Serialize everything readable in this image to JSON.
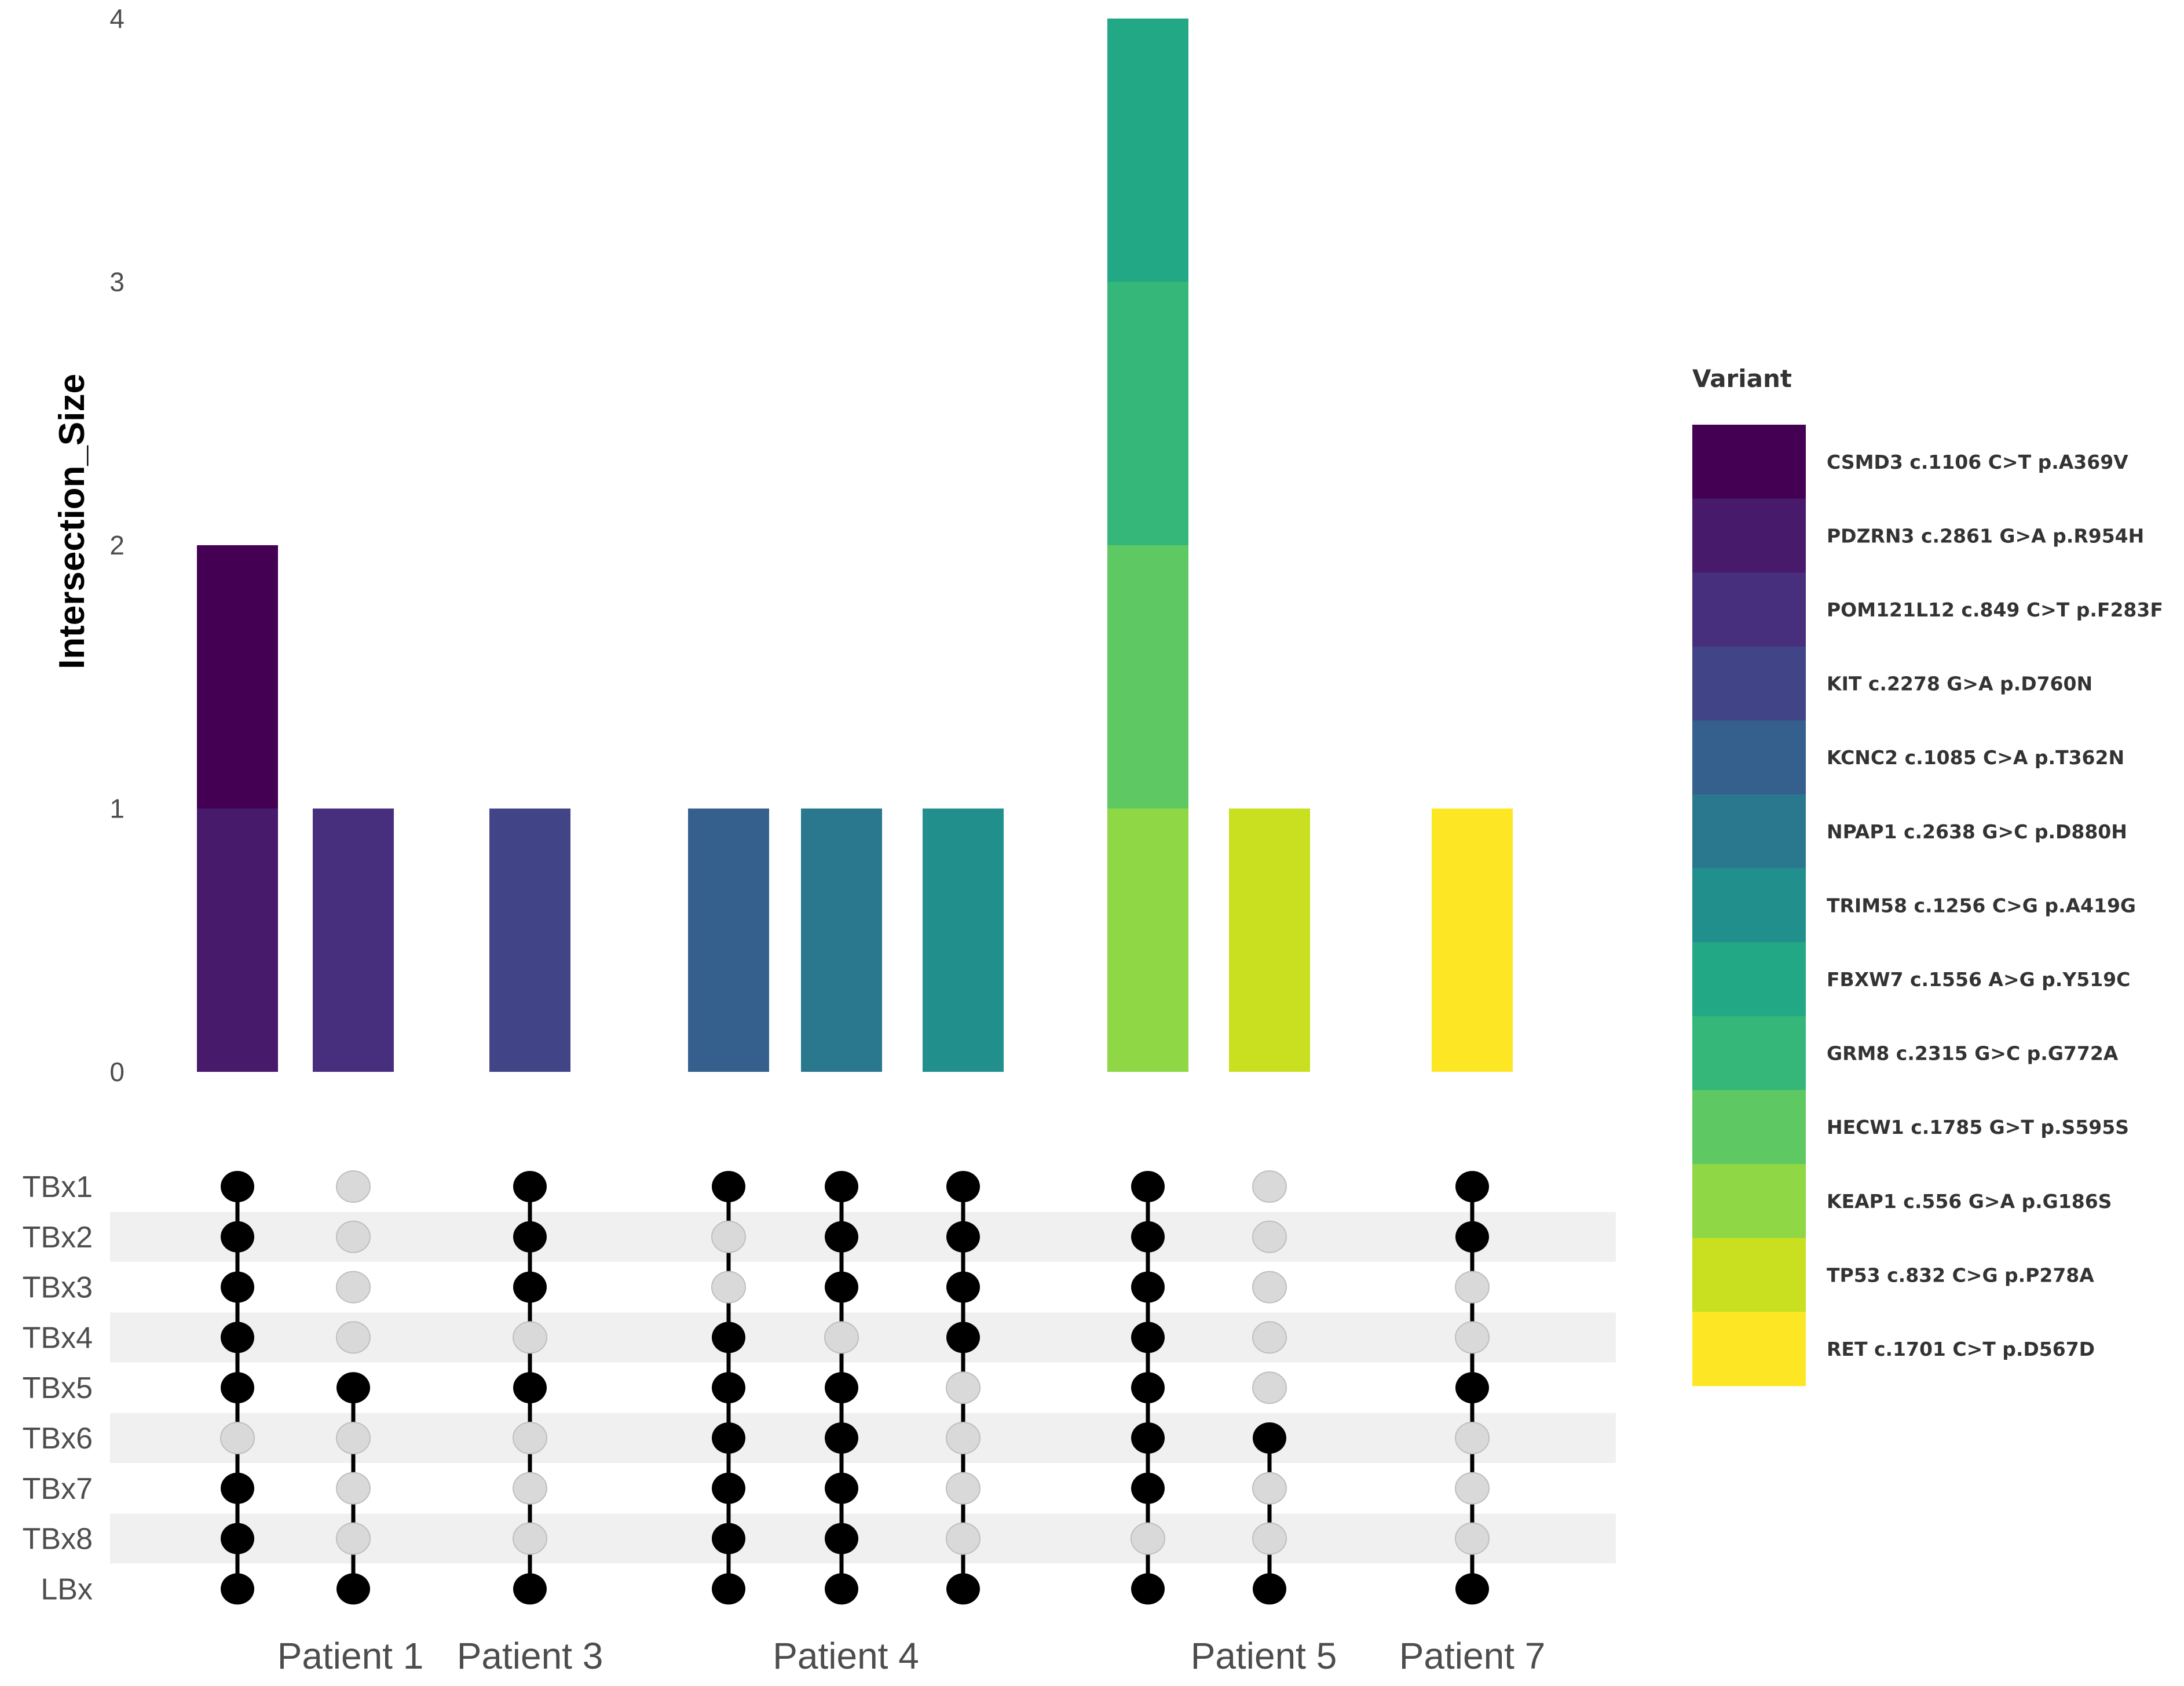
{
  "chart_data": {
    "type": "upset",
    "ylabel": "Intersection_Size",
    "ylim": [
      0,
      4
    ],
    "yticks": [
      0,
      1,
      2,
      3,
      4
    ],
    "sets": [
      "TBx1",
      "TBx2",
      "TBx3",
      "TBx4",
      "TBx5",
      "TBx6",
      "TBx7",
      "TBx8",
      "LBx"
    ],
    "legend": {
      "title": "Variant",
      "entries": [
        {
          "label": "CSMD3 c.1106 C>T p.A369V",
          "color": "#440154"
        },
        {
          "label": "PDZRN3 c.2861 G>A p.R954H",
          "color": "#481A6C"
        },
        {
          "label": "POM121L12 c.849 C>T p.F283F",
          "color": "#472F7D"
        },
        {
          "label": "KIT c.2278 G>A p.D760N",
          "color": "#414487"
        },
        {
          "label": "KCNC2 c.1085 C>A p.T362N",
          "color": "#35608D"
        },
        {
          "label": "NPAP1 c.2638 G>C p.D880H",
          "color": "#2A788E"
        },
        {
          "label": "TRIM58 c.1256 C>G p.A419G",
          "color": "#21908C"
        },
        {
          "label": "FBXW7 c.1556 A>G p.Y519C",
          "color": "#22A884"
        },
        {
          "label": "GRM8 c.2315 G>C p.G772A",
          "color": "#35B779"
        },
        {
          "label": "HECW1 c.1785 G>T p.S595S",
          "color": "#5EC962"
        },
        {
          "label": "KEAP1 c.556 G>A p.G186S",
          "color": "#8FD744"
        },
        {
          "label": "TP53 c.832 C>G p.P278A",
          "color": "#C8E020"
        },
        {
          "label": "RET c.1701 C>T p.D567D",
          "color": "#FDE725"
        }
      ]
    },
    "patients": [
      {
        "label": "Patient 1",
        "intersections": [
          0,
          1
        ]
      },
      {
        "label": "Patient 3",
        "intersections": [
          2
        ]
      },
      {
        "label": "Patient 4",
        "intersections": [
          3,
          4,
          5
        ]
      },
      {
        "label": "Patient 5",
        "intersections": [
          6,
          7
        ]
      },
      {
        "label": "Patient 7",
        "intersections": [
          8
        ]
      }
    ],
    "intersections": [
      {
        "patient": "Patient 1",
        "members": [
          "TBx1",
          "TBx2",
          "TBx3",
          "TBx4",
          "TBx5",
          "TBx7",
          "TBx8",
          "LBx"
        ],
        "size": 2,
        "stack": [
          {
            "variant": "PDZRN3 c.2861 G>A p.R954H",
            "value": 1
          },
          {
            "variant": "CSMD3 c.1106 C>T p.A369V",
            "value": 1
          }
        ]
      },
      {
        "patient": "Patient 1",
        "members": [
          "TBx5",
          "LBx"
        ],
        "size": 1,
        "stack": [
          {
            "variant": "POM121L12 c.849 C>T p.F283F",
            "value": 1
          }
        ]
      },
      {
        "patient": "Patient 3",
        "members": [
          "TBx1",
          "TBx2",
          "TBx3",
          "TBx5",
          "LBx"
        ],
        "size": 1,
        "stack": [
          {
            "variant": "KIT c.2278 G>A p.D760N",
            "value": 1
          }
        ]
      },
      {
        "patient": "Patient 4",
        "members": [
          "TBx1",
          "TBx4",
          "TBx5",
          "TBx6",
          "TBx7",
          "TBx8",
          "LBx"
        ],
        "size": 1,
        "stack": [
          {
            "variant": "KCNC2 c.1085 C>A p.T362N",
            "value": 1
          }
        ]
      },
      {
        "patient": "Patient 4",
        "members": [
          "TBx1",
          "TBx2",
          "TBx3",
          "TBx5",
          "TBx6",
          "TBx7",
          "TBx8",
          "LBx"
        ],
        "size": 1,
        "stack": [
          {
            "variant": "NPAP1 c.2638 G>C p.D880H",
            "value": 1
          }
        ]
      },
      {
        "patient": "Patient 4",
        "members": [
          "TBx1",
          "TBx2",
          "TBx3",
          "TBx4",
          "LBx"
        ],
        "size": 1,
        "stack": [
          {
            "variant": "TRIM58 c.1256 C>G p.A419G",
            "value": 1
          }
        ]
      },
      {
        "patient": "Patient 5",
        "members": [
          "TBx1",
          "TBx2",
          "TBx3",
          "TBx4",
          "TBx5",
          "TBx6",
          "TBx7",
          "LBx"
        ],
        "size": 4,
        "stack": [
          {
            "variant": "KEAP1 c.556 G>A p.G186S",
            "value": 1
          },
          {
            "variant": "HECW1 c.1785 G>T p.S595S",
            "value": 1
          },
          {
            "variant": "GRM8 c.2315 G>C p.G772A",
            "value": 1
          },
          {
            "variant": "FBXW7 c.1556 A>G p.Y519C",
            "value": 1
          }
        ]
      },
      {
        "patient": "Patient 5",
        "members": [
          "TBx6",
          "LBx"
        ],
        "size": 1,
        "stack": [
          {
            "variant": "TP53 c.832 C>G p.P278A",
            "value": 1
          }
        ]
      },
      {
        "patient": "Patient 7",
        "members": [
          "TBx1",
          "TBx2",
          "TBx5",
          "LBx"
        ],
        "size": 1,
        "stack": [
          {
            "variant": "RET c.1701 C>T p.D567D",
            "value": 1
          }
        ]
      }
    ]
  }
}
